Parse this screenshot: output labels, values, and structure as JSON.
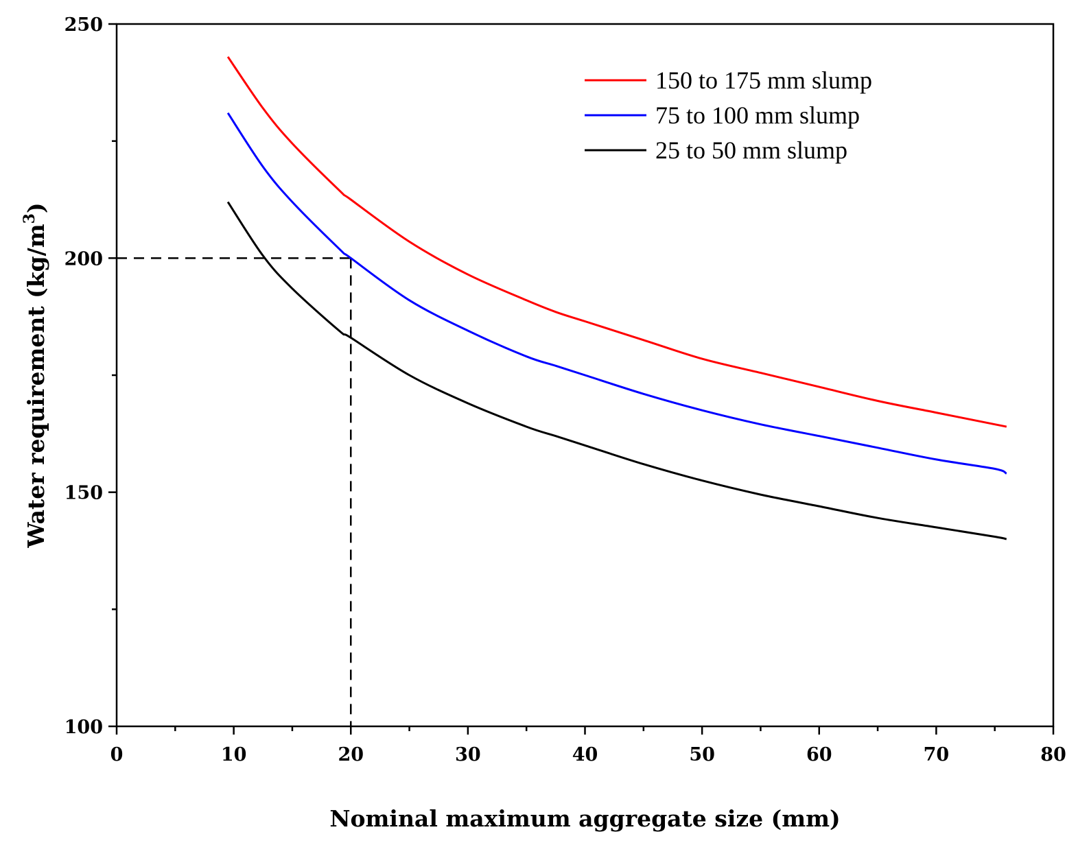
{
  "chart_data": {
    "type": "line",
    "xlabel": "Nominal maximum aggregate size (mm)",
    "ylabel": "Water requirement (kg/m",
    "ylabel_sup": "3",
    "ylabel_close": ")",
    "xlim": [
      0,
      80
    ],
    "ylim": [
      100,
      250
    ],
    "x_ticks": [
      "0",
      "10",
      "20",
      "30",
      "40",
      "50",
      "60",
      "70",
      "80"
    ],
    "y_ticks": [
      "100",
      "150",
      "200",
      "250"
    ],
    "x_tick_values": [
      0,
      10,
      20,
      30,
      40,
      50,
      60,
      70,
      80
    ],
    "y_tick_values": [
      100,
      150,
      200,
      250
    ],
    "x_minor_step": 5,
    "y_minor_step": 25,
    "grid": false,
    "legend_position": "top-right",
    "series": [
      {
        "name": "150 to 175 mm slump",
        "color": "#ff0000",
        "x": [
          9.5,
          12.5,
          15,
          19,
          20,
          25,
          30,
          35,
          37.5,
          40,
          45,
          50,
          55,
          60,
          65,
          70,
          75,
          76
        ],
        "y": [
          243,
          232,
          224.5,
          214.5,
          212.5,
          203.5,
          196.5,
          191,
          188.5,
          186.5,
          182.5,
          178.5,
          175.5,
          172.5,
          169.5,
          167,
          164.5,
          164
        ]
      },
      {
        "name": "75 to 100 mm slump",
        "color": "#0000ff",
        "x": [
          9.5,
          12.5,
          15,
          19,
          20,
          25,
          30,
          35,
          37.5,
          40,
          45,
          50,
          55,
          60,
          65,
          70,
          75,
          76
        ],
        "y": [
          231,
          219.5,
          212,
          202,
          200,
          191,
          184.5,
          179,
          177,
          175,
          171,
          167.5,
          164.5,
          162,
          159.5,
          157,
          155,
          154
        ]
      },
      {
        "name": "25 to 50 mm slump",
        "color": "#000000",
        "x": [
          9.5,
          12.5,
          15,
          19,
          20,
          25,
          30,
          35,
          37.5,
          40,
          45,
          50,
          55,
          60,
          65,
          70,
          75,
          76
        ],
        "y": [
          212,
          200.5,
          193.5,
          184.5,
          183,
          175,
          169,
          164,
          162,
          160,
          156,
          152.5,
          149.5,
          147,
          144.5,
          142.5,
          140.5,
          140
        ]
      }
    ],
    "annotations": [
      {
        "type": "dashed-guide",
        "x": 20,
        "y": 200,
        "color": "#000000"
      }
    ]
  }
}
